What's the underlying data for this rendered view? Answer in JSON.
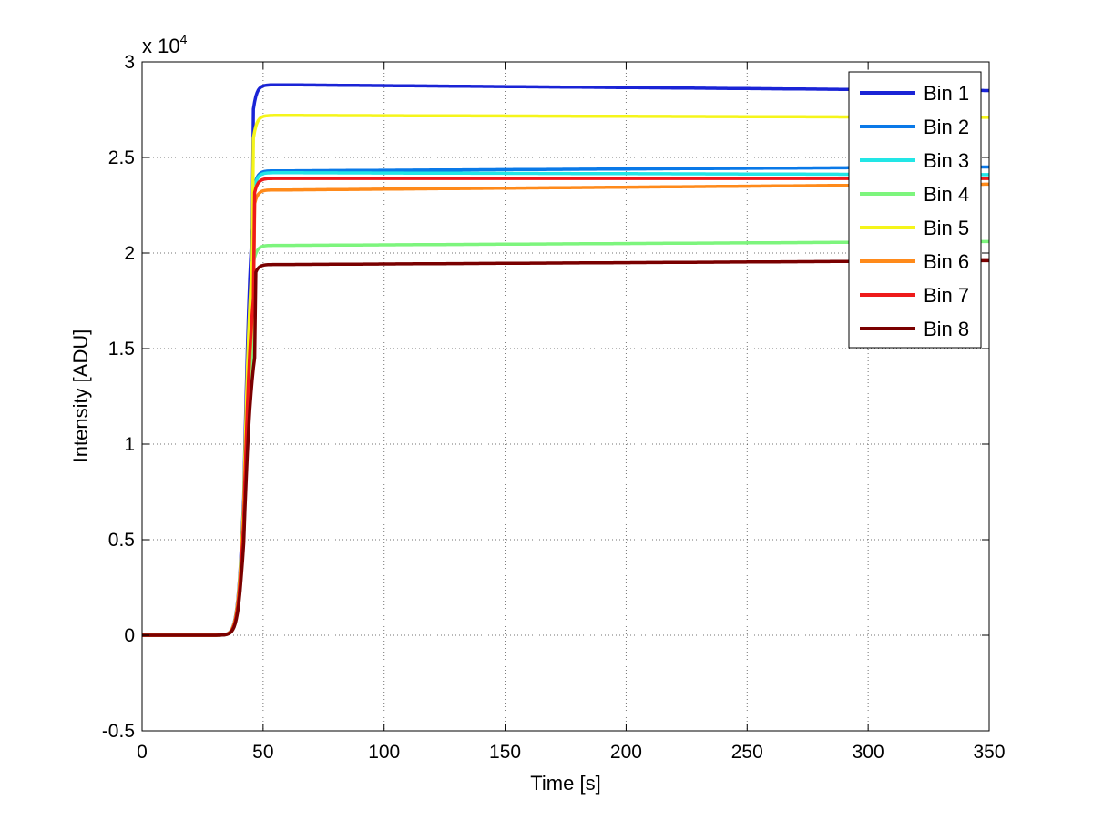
{
  "chart_data": {
    "type": "line",
    "xlabel": "Time [s]",
    "ylabel": "Intensity [ADU]",
    "xlim": [
      0,
      350
    ],
    "ylim": [
      -0.5,
      3
    ],
    "y_exponent_label": "x 10",
    "y_exponent": "4",
    "y_units_multiplier": 10000,
    "x_ticks": [
      "0",
      "50",
      "100",
      "150",
      "200",
      "250",
      "300",
      "350"
    ],
    "y_ticks": [
      "-0.5",
      "0",
      "0.5",
      "1",
      "1.5",
      "2",
      "2.5",
      "3"
    ],
    "grid": true,
    "legend_position": "top-right",
    "rise_time": 42,
    "series": [
      {
        "name": "Bin 1",
        "color": "#1a24d6",
        "plateau": 2.88,
        "end": 2.85,
        "tau": 4.5
      },
      {
        "name": "Bin 2",
        "color": "#0a79e8",
        "plateau": 2.43,
        "end": 2.45,
        "tau": 5
      },
      {
        "name": "Bin 3",
        "color": "#22e6e6",
        "plateau": 2.42,
        "end": 2.41,
        "tau": 5
      },
      {
        "name": "Bin 4",
        "color": "#7df57d",
        "plateau": 2.04,
        "end": 2.06,
        "tau": 5
      },
      {
        "name": "Bin 5",
        "color": "#f5f51a",
        "plateau": 2.72,
        "end": 2.71,
        "tau": 5
      },
      {
        "name": "Bin 6",
        "color": "#ff8a1a",
        "plateau": 2.33,
        "end": 2.36,
        "tau": 5.5
      },
      {
        "name": "Bin 7",
        "color": "#ee1a1a",
        "plateau": 2.39,
        "end": 2.39,
        "tau": 5.5
      },
      {
        "name": "Bin 8",
        "color": "#7a0000",
        "plateau": 1.94,
        "end": 1.96,
        "tau": 6
      }
    ]
  }
}
